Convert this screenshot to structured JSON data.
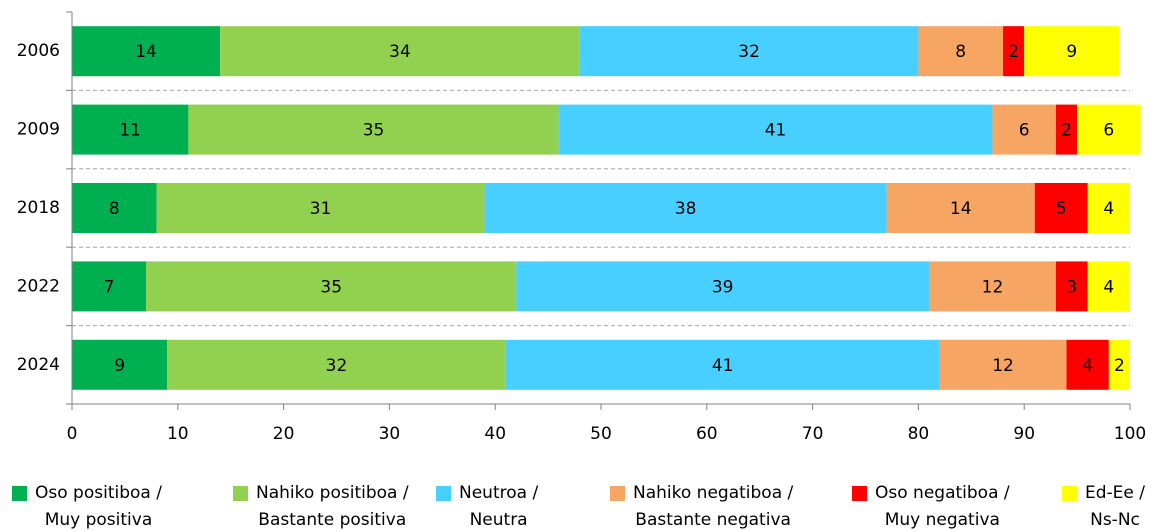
{
  "chart_data": {
    "type": "stacked-barh",
    "categories": [
      "2006",
      "2009",
      "2018",
      "2022",
      "2024"
    ],
    "series": [
      {
        "name": "Oso positiboa /\nMuy positiva",
        "color": "#00b050",
        "values": [
          14,
          11,
          8,
          7,
          9
        ]
      },
      {
        "name": "Nahiko positiboa /\nBastante positiva",
        "color": "#92d050",
        "values": [
          34,
          35,
          31,
          35,
          32
        ]
      },
      {
        "name": "Neutroa /\nNeutra",
        "color": "#47cfff",
        "values": [
          32,
          41,
          38,
          39,
          41
        ]
      },
      {
        "name": "Nahiko negatiboa /\nBastante negativa",
        "color": "#f7a563",
        "values": [
          8,
          6,
          14,
          12,
          12
        ]
      },
      {
        "name": "Oso negatiboa /\nMuy negativa",
        "color": "#ff0000",
        "values": [
          2,
          2,
          5,
          3,
          4
        ]
      },
      {
        "name": "Ed-Ee /\nNs-Nc",
        "color": "#ffff00",
        "values": [
          9,
          6,
          4,
          4,
          2
        ]
      }
    ],
    "xlim": [
      0,
      100
    ],
    "xticks": [
      0,
      10,
      20,
      30,
      40,
      50,
      60,
      70,
      80,
      90,
      100
    ]
  }
}
